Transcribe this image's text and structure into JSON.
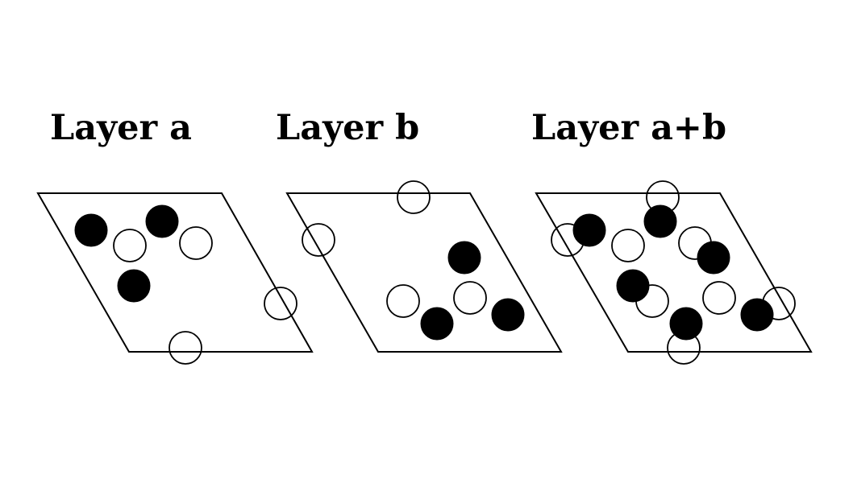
{
  "colors": {
    "background": "#ffffff",
    "line": "#000000",
    "filled_atom": "#000000",
    "open_atom": "#ffffff"
  },
  "panels": [
    {
      "id": "layer-a",
      "title": "Layer a",
      "filled_atoms": 3,
      "open_atoms": 4
    },
    {
      "id": "layer-b",
      "title": "Layer b",
      "filled_atoms": 3,
      "open_atoms": 4
    },
    {
      "id": "layer-a-b",
      "title": "Layer a+b",
      "filled_atoms": 6,
      "open_atoms": 8
    }
  ]
}
